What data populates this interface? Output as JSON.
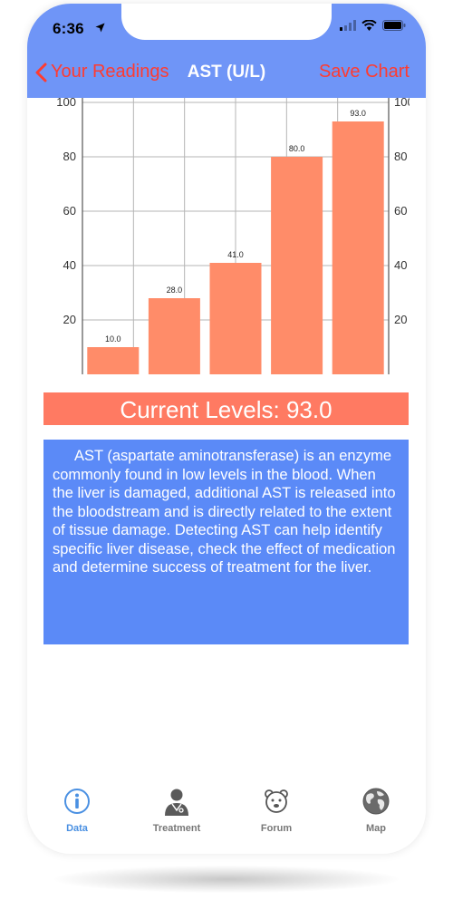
{
  "status_bar": {
    "time": "6:36"
  },
  "nav": {
    "back_label": "Your Readings",
    "title": "AST (U/L)",
    "action_label": "Save Chart"
  },
  "chart_data": {
    "type": "bar",
    "values": [
      10.0,
      28.0,
      41.0,
      80.0,
      93.0
    ],
    "value_labels": [
      "10.0",
      "28.0",
      "41.0",
      "80.0",
      "93.0"
    ],
    "ylim": [
      0,
      100
    ],
    "yticks": [
      20,
      40,
      60,
      80,
      100
    ],
    "grid": true,
    "bar_color": "#ff8c69"
  },
  "current": {
    "label": "Current Levels: 93.0"
  },
  "info": {
    "text": "AST (aspartate aminotransferase) is an enzyme commonly found in low levels in the blood. When the liver is damaged, additional AST is released into the bloodstream and is directly related to the extent of tissue damage. Detecting AST can help identify specific liver disease, check the effect of medication and determine success of treatment for the liver."
  },
  "tabs": [
    {
      "label": "Data",
      "icon": "info-icon",
      "active": true
    },
    {
      "label": "Treatment",
      "icon": "doctor-icon",
      "active": false
    },
    {
      "label": "Forum",
      "icon": "bear-icon",
      "active": false
    },
    {
      "label": "Map",
      "icon": "globe-icon",
      "active": false
    }
  ],
  "colors": {
    "nav_bg": "#6f95f7",
    "accent_red": "#ff3b30",
    "banner_bg": "#ff7a62",
    "info_bg": "#5b8af7",
    "tab_active": "#4a90e2"
  }
}
